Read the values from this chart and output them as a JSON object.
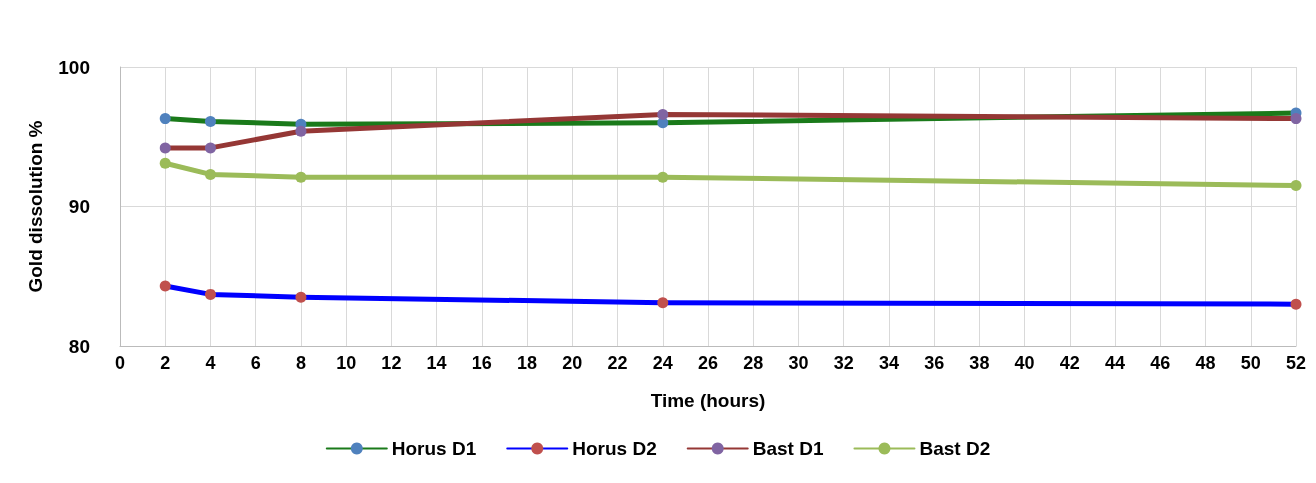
{
  "chart_data": {
    "type": "line",
    "xlabel": "Time (hours)",
    "ylabel": "Gold dissolution %",
    "x": [
      2,
      4,
      8,
      24,
      52
    ],
    "series": [
      {
        "name": "Horus D1",
        "color": "#1a7a1a",
        "colors": [
          "#4f81bd",
          "#4f81bd",
          "#4f81bd",
          "#4f81bd",
          "#4f81bd"
        ],
        "values": [
          96.3,
          96.1,
          95.9,
          96.0,
          96.7
        ]
      },
      {
        "name": "Horus D2",
        "color": "#0000ff",
        "colors": [
          "#c0504d",
          "#c0504d",
          "#c0504d",
          "#c0504d",
          "#c0504d"
        ],
        "values": [
          84.3,
          83.7,
          83.5,
          83.1,
          83.0
        ]
      },
      {
        "name": "Bast D1",
        "color": "#953735",
        "colors": [
          "#8064a2",
          "#8064a2",
          "#8064a2",
          "#8064a2",
          "#8064a2"
        ],
        "values": [
          94.2,
          94.2,
          95.4,
          96.6,
          96.3
        ]
      },
      {
        "name": "Bast D2",
        "color": "#9bbb59",
        "colors": [
          "#9bbb59",
          "#9bbb59",
          "#9bbb59",
          "#9bbb59",
          "#9bbb59"
        ],
        "values": [
          93.1,
          92.3,
          92.1,
          92.1,
          91.5
        ]
      }
    ],
    "xlim": [
      0,
      52
    ],
    "xticks": [
      0,
      2,
      4,
      6,
      8,
      10,
      12,
      14,
      16,
      18,
      20,
      22,
      24,
      26,
      28,
      30,
      32,
      34,
      36,
      38,
      40,
      42,
      44,
      46,
      48,
      50,
      52
    ],
    "ylim": [
      80,
      100
    ],
    "yticks": [
      80,
      90,
      100
    ],
    "grid": true,
    "legend": "bottom",
    "marker": "circle",
    "line_style": "solid"
  }
}
